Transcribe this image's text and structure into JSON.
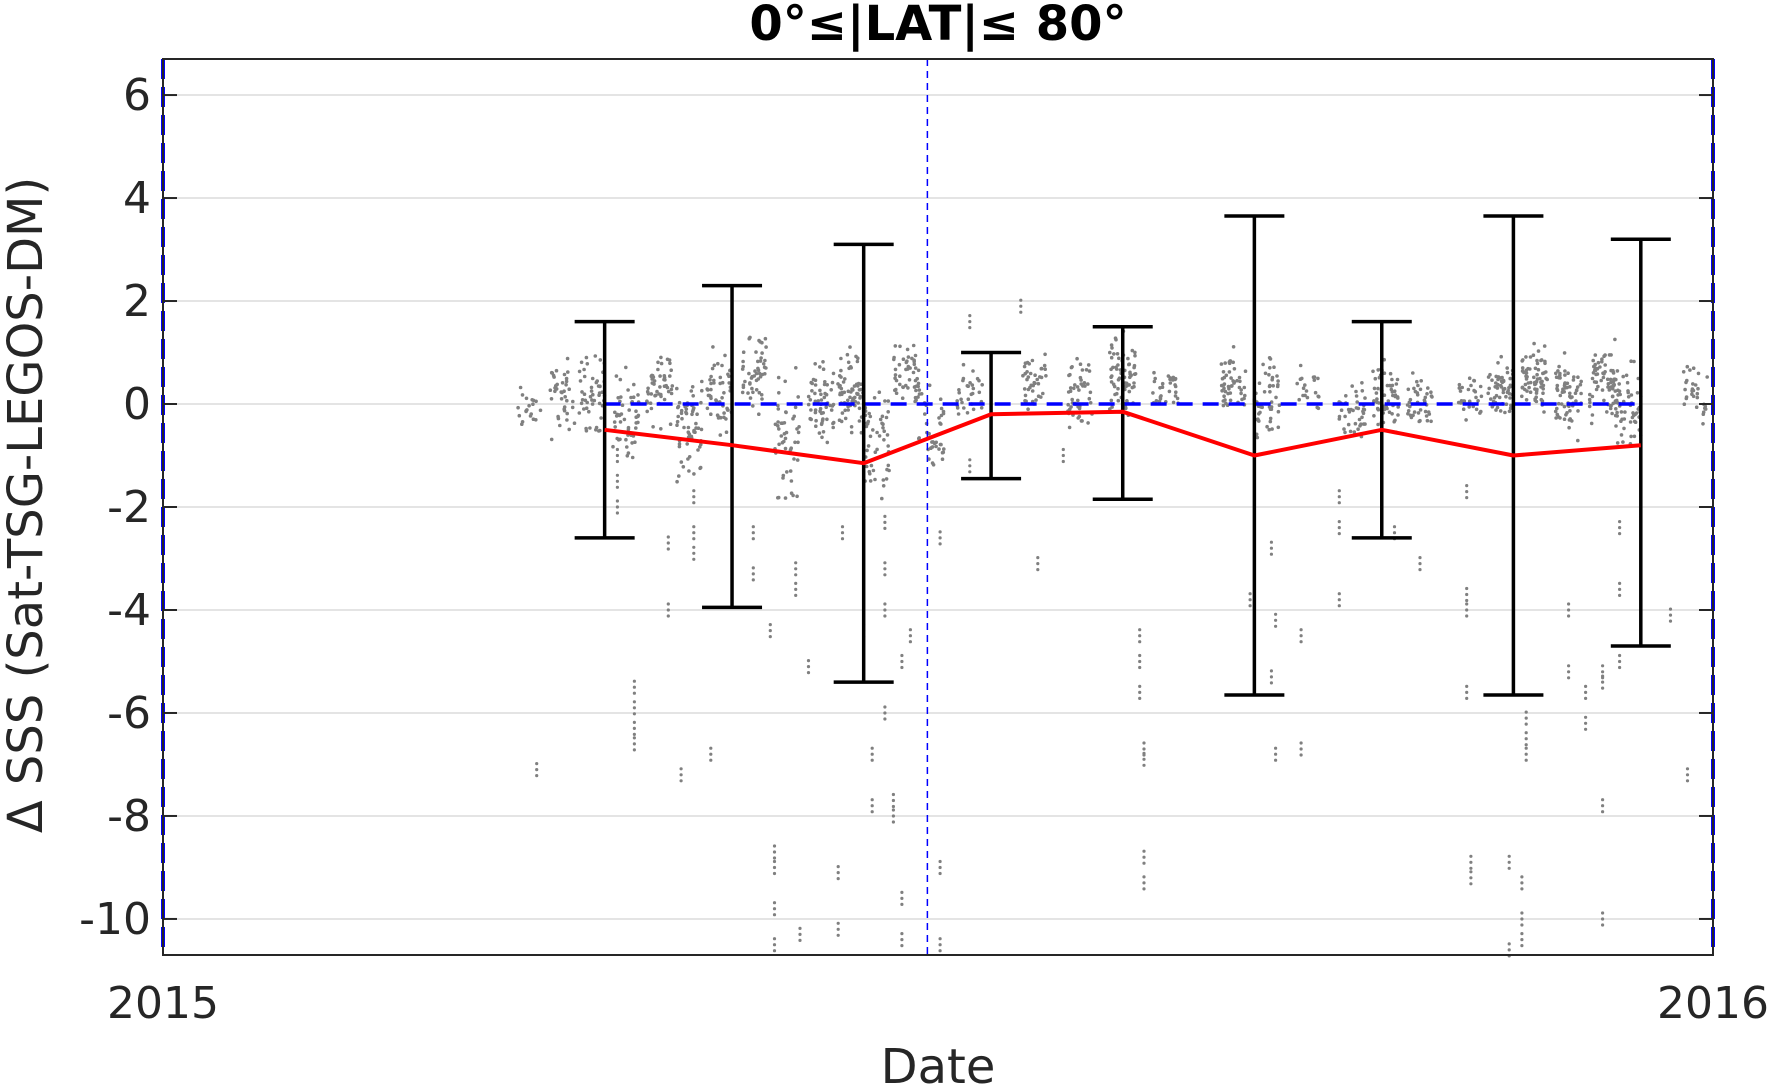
{
  "chart_data": {
    "type": "scatter",
    "title": "0°≤|LAT|≤ 80°",
    "xlabel": "Date",
    "ylabel": "Δ SSS (Sat-TSG-LEGOS-DM)",
    "xlim": [
      "2015-01-01",
      "2016-01-01"
    ],
    "ylim": [
      -10.7,
      6.7
    ],
    "xticks": [
      {
        "date": "2015-01-01",
        "label": "2015"
      },
      {
        "date": "2016-01-01",
        "label": "2016"
      }
    ],
    "yticks": [
      6,
      4,
      2,
      0,
      -2,
      -4,
      -6,
      -8,
      -10
    ],
    "grid": true,
    "colors": {
      "scatter": "#808080",
      "mean_line": "#ff0000",
      "error_bars": "#000000",
      "zero_line": "#0000ff",
      "marker_line": "#0000ff",
      "grid": "#dcdcdc",
      "axis": "#262626"
    },
    "reference_lines": [
      {
        "kind": "horizontal",
        "y": 0,
        "x_from": "2015-04-15",
        "x_to": "2015-12-15",
        "style": "dashed"
      },
      {
        "kind": "vertical",
        "x": "2015-06-30",
        "style": "dashed-thin"
      },
      {
        "kind": "vertical",
        "x": "2015-01-01",
        "style": "dashed"
      },
      {
        "kind": "vertical",
        "x": "2016-01-01",
        "style": "dashed"
      }
    ],
    "series": [
      {
        "type": "line-errorbar",
        "x": [
          "2015-04-15",
          "2015-05-15",
          "2015-06-15",
          "2015-07-15",
          "2015-08-15",
          "2015-09-15",
          "2015-10-15",
          "2015-11-15",
          "2015-12-15"
        ],
        "y": [
          -0.5,
          -0.8,
          -1.15,
          -0.2,
          -0.15,
          -1.0,
          -0.5,
          -1.0,
          -0.8
        ],
        "upper": [
          1.6,
          2.3,
          3.1,
          1.0,
          1.5,
          3.65,
          1.6,
          3.65,
          3.2
        ],
        "lower": [
          -2.6,
          -3.95,
          -5.4,
          -1.45,
          -1.85,
          -5.65,
          -2.6,
          -5.65,
          -4.7
        ]
      },
      {
        "type": "scatter",
        "clusters": [
          {
            "x": "2015-03-28",
            "y": -0.1,
            "spread": 0.3,
            "n": 20
          },
          {
            "x": "2015-04-05",
            "y": 0.1,
            "spread": 0.5,
            "n": 40
          },
          {
            "x": "2015-04-12",
            "y": 0.2,
            "spread": 0.5,
            "n": 50
          },
          {
            "x": "2015-04-20",
            "y": -0.3,
            "spread": 0.6,
            "n": 50
          },
          {
            "x": "2015-04-28",
            "y": 0.4,
            "spread": 0.5,
            "n": 50
          },
          {
            "x": "2015-05-05",
            "y": -0.5,
            "spread": 0.7,
            "n": 60
          },
          {
            "x": "2015-05-12",
            "y": 0.3,
            "spread": 0.5,
            "n": 50
          },
          {
            "x": "2015-05-20",
            "y": 0.6,
            "spread": 0.5,
            "n": 50
          },
          {
            "x": "2015-05-28",
            "y": -0.6,
            "spread": 0.8,
            "n": 50
          },
          {
            "x": "2015-06-05",
            "y": 0.0,
            "spread": 0.5,
            "n": 60
          },
          {
            "x": "2015-06-12",
            "y": 0.2,
            "spread": 0.5,
            "n": 70
          },
          {
            "x": "2015-06-18",
            "y": -0.8,
            "spread": 0.8,
            "n": 50
          },
          {
            "x": "2015-06-25",
            "y": 0.5,
            "spread": 0.4,
            "n": 50
          },
          {
            "x": "2015-07-01",
            "y": -0.6,
            "spread": 0.7,
            "n": 40
          },
          {
            "x": "2015-07-10",
            "y": 0.2,
            "spread": 0.4,
            "n": 30
          },
          {
            "x": "2015-07-25",
            "y": 0.4,
            "spread": 0.4,
            "n": 40
          },
          {
            "x": "2015-08-05",
            "y": 0.2,
            "spread": 0.5,
            "n": 50
          },
          {
            "x": "2015-08-15",
            "y": 0.5,
            "spread": 0.5,
            "n": 70
          },
          {
            "x": "2015-08-25",
            "y": 0.3,
            "spread": 0.4,
            "n": 30
          },
          {
            "x": "2015-09-10",
            "y": 0.4,
            "spread": 0.4,
            "n": 50
          },
          {
            "x": "2015-09-18",
            "y": 0.1,
            "spread": 0.5,
            "n": 50
          },
          {
            "x": "2015-09-28",
            "y": 0.3,
            "spread": 0.3,
            "n": 20
          },
          {
            "x": "2015-10-08",
            "y": -0.1,
            "spread": 0.4,
            "n": 40
          },
          {
            "x": "2015-10-16",
            "y": 0.2,
            "spread": 0.5,
            "n": 60
          },
          {
            "x": "2015-10-24",
            "y": 0.0,
            "spread": 0.4,
            "n": 40
          },
          {
            "x": "2015-11-05",
            "y": 0.1,
            "spread": 0.3,
            "n": 30
          },
          {
            "x": "2015-11-12",
            "y": 0.3,
            "spread": 0.4,
            "n": 60
          },
          {
            "x": "2015-11-20",
            "y": 0.5,
            "spread": 0.4,
            "n": 70
          },
          {
            "x": "2015-11-28",
            "y": 0.2,
            "spread": 0.5,
            "n": 70
          },
          {
            "x": "2015-12-06",
            "y": 0.4,
            "spread": 0.5,
            "n": 70
          },
          {
            "x": "2015-12-12",
            "y": 0.0,
            "spread": 0.5,
            "n": 60
          },
          {
            "x": "2015-12-28",
            "y": 0.1,
            "spread": 0.4,
            "n": 30
          }
        ],
        "outliers": [
          {
            "x": "2015-03-30",
            "y": [
              -7.1
            ]
          },
          {
            "x": "2015-04-18",
            "y": [
              -2.0,
              -1.5,
              -1.0
            ]
          },
          {
            "x": "2015-04-22",
            "y": [
              -5.5,
              -5.9,
              -6.3,
              -6.6
            ]
          },
          {
            "x": "2015-04-30",
            "y": [
              -4.0,
              -2.7
            ]
          },
          {
            "x": "2015-05-03",
            "y": [
              -7.2
            ]
          },
          {
            "x": "2015-05-06",
            "y": [
              -2.5,
              -1.8,
              -2.9
            ]
          },
          {
            "x": "2015-05-10",
            "y": [
              -6.8
            ]
          },
          {
            "x": "2015-05-20",
            "y": [
              -3.3,
              -2.5
            ]
          },
          {
            "x": "2015-05-24",
            "y": [
              -4.4
            ]
          },
          {
            "x": "2015-05-25",
            "y": [
              -8.7,
              -9.0,
              -9.8,
              -10.5
            ]
          },
          {
            "x": "2015-05-30",
            "y": [
              -3.2,
              -3.6
            ]
          },
          {
            "x": "2015-05-31",
            "y": [
              -10.3
            ]
          },
          {
            "x": "2015-06-02",
            "y": [
              -5.1
            ]
          },
          {
            "x": "2015-06-09",
            "y": [
              -9.1,
              -10.2
            ]
          },
          {
            "x": "2015-06-10",
            "y": [
              -2.5
            ]
          },
          {
            "x": "2015-06-15",
            "y": [
              -4.4
            ]
          },
          {
            "x": "2015-06-17",
            "y": [
              -6.8,
              -7.8
            ]
          },
          {
            "x": "2015-06-20",
            "y": [
              -2.3,
              -3.2,
              -4.0,
              -6.0
            ]
          },
          {
            "x": "2015-06-22",
            "y": [
              -8.0,
              -7.7
            ]
          },
          {
            "x": "2015-06-24",
            "y": [
              -5.0,
              -9.6,
              -10.4
            ]
          },
          {
            "x": "2015-06-26",
            "y": [
              -4.5
            ]
          },
          {
            "x": "2015-07-03",
            "y": [
              -2.6,
              -9.0,
              -10.5
            ]
          },
          {
            "x": "2015-07-10",
            "y": [
              -1.2,
              1.6
            ]
          },
          {
            "x": "2015-07-22",
            "y": [
              1.9
            ]
          },
          {
            "x": "2015-07-26",
            "y": [
              -3.1
            ]
          },
          {
            "x": "2015-08-01",
            "y": [
              -1.0
            ]
          },
          {
            "x": "2015-08-19",
            "y": [
              -4.5,
              -5.0,
              -5.6
            ]
          },
          {
            "x": "2015-08-20",
            "y": [
              -6.7,
              -6.9,
              -8.8,
              -9.3
            ]
          },
          {
            "x": "2015-09-14",
            "y": [
              -3.8
            ]
          },
          {
            "x": "2015-09-19",
            "y": [
              -2.8,
              -5.3
            ]
          },
          {
            "x": "2015-09-20",
            "y": [
              -4.2,
              -6.8
            ]
          },
          {
            "x": "2015-09-26",
            "y": [
              -4.5,
              -6.7
            ]
          },
          {
            "x": "2015-10-05",
            "y": [
              -1.8,
              -3.8,
              -2.4
            ]
          },
          {
            "x": "2015-10-18",
            "y": [
              -2.5
            ]
          },
          {
            "x": "2015-10-24",
            "y": [
              -3.1
            ]
          },
          {
            "x": "2015-11-04",
            "y": [
              -1.7,
              -3.7,
              -4.0,
              -5.6
            ]
          },
          {
            "x": "2015-11-05",
            "y": [
              -8.9,
              -9.2
            ]
          },
          {
            "x": "2015-11-14",
            "y": [
              -8.9,
              -10.6
            ]
          },
          {
            "x": "2015-11-17",
            "y": [
              -9.3,
              -10.0,
              -10.4
            ]
          },
          {
            "x": "2015-11-18",
            "y": [
              -6.1,
              -6.5,
              -6.8
            ]
          },
          {
            "x": "2015-11-28",
            "y": [
              -4.0,
              -5.2
            ]
          },
          {
            "x": "2015-12-02",
            "y": [
              -5.6,
              -6.2
            ]
          },
          {
            "x": "2015-12-06",
            "y": [
              -5.2,
              -5.4,
              -7.8,
              -10.0
            ]
          },
          {
            "x": "2015-12-10",
            "y": [
              -2.4,
              -3.6,
              -5.0
            ]
          },
          {
            "x": "2015-12-22",
            "y": [
              -4.1
            ]
          },
          {
            "x": "2015-12-26",
            "y": [
              -7.2
            ]
          }
        ]
      }
    ]
  }
}
